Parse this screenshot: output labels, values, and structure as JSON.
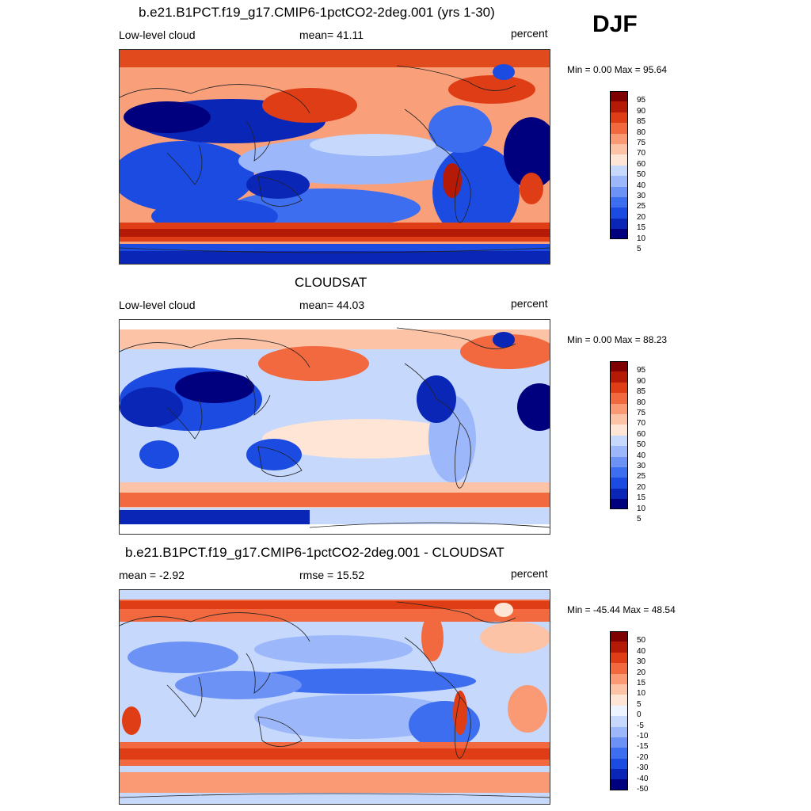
{
  "season": "DJF",
  "colors": {
    "levels15": [
      "#00007f",
      "#0a26b6",
      "#1b4be0",
      "#3d6ef0",
      "#6d92f5",
      "#9db8fa",
      "#c6d8fc",
      "#eef4ff",
      "#ffe5d6",
      "#fcc3a6",
      "#f99a74",
      "#f2693f",
      "#df3d16",
      "#b51a06",
      "#7f0000"
    ],
    "levels14": [
      "#00007f",
      "#0a26b6",
      "#1b4be0",
      "#3d6ef0",
      "#6d92f5",
      "#9db8fa",
      "#c6d8fc",
      "#ffe5d6",
      "#fcc3a6",
      "#f99a74",
      "#f2693f",
      "#df3d16",
      "#b51a06",
      "#7f0000"
    ]
  },
  "panels": [
    {
      "title": "b.e21.B1PCT.f19_g17.CMIP6-1pctCO2-2deg.001 (yrs 1-30)",
      "left_label": "Low-level cloud",
      "center_label": "mean=  41.11",
      "right_label": "percent",
      "minmax": "Min =   0.00 Max =  95.64",
      "colorbar_labels": [
        "95",
        "90",
        "85",
        "80",
        "75",
        "70",
        "60",
        "50",
        "40",
        "30",
        "25",
        "20",
        "15",
        "10",
        "5"
      ]
    },
    {
      "title": "CLOUDSAT",
      "left_label": "Low-level cloud",
      "center_label": "mean=  44.03",
      "right_label": "percent",
      "minmax": "Min =   0.00 Max =  88.23",
      "colorbar_labels": [
        "95",
        "90",
        "85",
        "80",
        "75",
        "70",
        "60",
        "50",
        "40",
        "30",
        "25",
        "20",
        "15",
        "10",
        "5"
      ]
    },
    {
      "title": "b.e21.B1PCT.f19_g17.CMIP6-1pctCO2-2deg.001 - CLOUDSAT",
      "left_label": "mean =  -2.92",
      "center_label": "rmse =  15.52",
      "right_label": "percent",
      "minmax": "Min = -45.44 Max =  48.54",
      "colorbar_labels": [
        "50",
        "40",
        "30",
        "20",
        "15",
        "10",
        "5",
        "0",
        "-5",
        "-10",
        "-15",
        "-20",
        "-30",
        "-40",
        "-50"
      ]
    }
  ]
}
